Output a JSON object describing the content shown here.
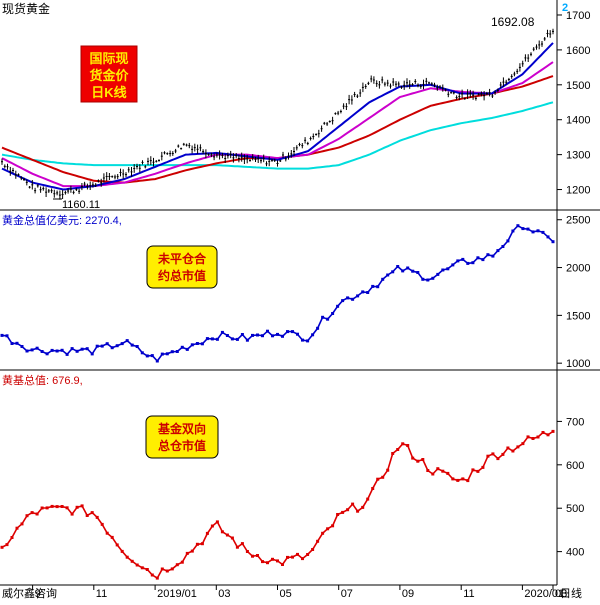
{
  "header": {
    "title": "现货黄金",
    "marker": "2"
  },
  "colors": {
    "price": "#000000",
    "ma_blue": "#0000cc",
    "ma_magenta": "#cc00cc",
    "ma_red": "#cc0000",
    "ma_cyan": "#00dddd",
    "oi": "#0000cc",
    "fund": "#dd0000",
    "badge_red": "#ee0000",
    "badge_yellow": "#ffee00"
  },
  "axis": {
    "x_labels": [
      "9",
      "11",
      "2019/01",
      "03",
      "05",
      "07",
      "09",
      "11",
      "2020/01",
      "03"
    ],
    "x_suffix": "日线",
    "source": "威尔鑫咨询"
  },
  "panels": [
    {
      "badge": "国际现货金价日K线",
      "badge_lines": [
        "国际现",
        "货金价",
        "日K线"
      ],
      "ylim": [
        1150,
        1720
      ],
      "ticks": [
        1200,
        1300,
        1400,
        1500,
        1600,
        1700
      ],
      "annotations": {
        "low": "1160.11",
        "high": "1692.08"
      }
    },
    {
      "label": "黄金总值亿美元: 2270.4,",
      "badge": "未平仓合约总市值",
      "badge_lines": [
        "未平仓合",
        "约总市值"
      ],
      "ylim": [
        960,
        2560
      ],
      "ticks": [
        1000,
        1500,
        2000,
        2500
      ]
    },
    {
      "label": "黄基总值: 676.9,",
      "badge": "基金双向总仓市值",
      "badge_lines": [
        "基金双向",
        "总仓市值"
      ],
      "ylim": [
        330,
        800
      ],
      "ticks": [
        400,
        500,
        600,
        700
      ]
    }
  ],
  "chart_data": [
    {
      "type": "line",
      "title": "国际现货金价日K线",
      "x": [
        "2018/08",
        "2018/09",
        "2018/10",
        "2018/11",
        "2018/12",
        "2019/01",
        "2019/02",
        "2019/03",
        "2019/04",
        "2019/05",
        "2019/06",
        "2019/07",
        "2019/08",
        "2019/09",
        "2019/10",
        "2019/11",
        "2019/12",
        "2020/01",
        "2020/02"
      ],
      "ylim": [
        1150,
        1720
      ],
      "series": [
        {
          "values": [
            1280,
            1205,
            1190,
            1215,
            1250,
            1285,
            1330,
            1300,
            1285,
            1280,
            1340,
            1420,
            1510,
            1500,
            1505,
            1465,
            1475,
            1560,
            1660
          ]
        },
        {
          "values": [
            1260,
            1220,
            1200,
            1210,
            1230,
            1265,
            1300,
            1305,
            1295,
            1285,
            1310,
            1380,
            1450,
            1495,
            1500,
            1475,
            1475,
            1530,
            1620
          ]
        },
        {
          "values": [
            1290,
            1245,
            1210,
            1210,
            1220,
            1245,
            1275,
            1300,
            1300,
            1290,
            1300,
            1345,
            1405,
            1465,
            1490,
            1480,
            1475,
            1505,
            1565
          ]
        },
        {
          "values": [
            1320,
            1285,
            1250,
            1225,
            1220,
            1230,
            1255,
            1275,
            1290,
            1290,
            1300,
            1320,
            1355,
            1400,
            1440,
            1460,
            1475,
            1495,
            1525
          ]
        },
        {
          "values": [
            1300,
            1285,
            1275,
            1270,
            1270,
            1270,
            1270,
            1270,
            1265,
            1260,
            1260,
            1270,
            1300,
            1340,
            1370,
            1390,
            1405,
            1425,
            1450
          ]
        }
      ],
      "annotations": [
        {
          "text": "1160.11",
          "x": "2018/10",
          "y": 1160
        },
        {
          "text": "1692.08",
          "x": "2020/02",
          "y": 1692
        }
      ]
    },
    {
      "type": "line",
      "title": "未平仓合约总市值",
      "x": [
        "2018/08",
        "2018/09",
        "2018/10",
        "2018/11",
        "2018/12",
        "2019/01",
        "2019/02",
        "2019/03",
        "2019/04",
        "2019/05",
        "2019/06",
        "2019/07",
        "2019/08",
        "2019/09",
        "2019/10",
        "2019/11",
        "2019/12",
        "2020/01",
        "2020/02"
      ],
      "ylim": [
        960,
        2560
      ],
      "series": [
        {
          "name": "黄金总值亿美元",
          "values": [
            1290,
            1140,
            1130,
            1130,
            1220,
            1040,
            1170,
            1290,
            1260,
            1330,
            1270,
            1630,
            1780,
            1990,
            1890,
            2050,
            2120,
            2450,
            2270
          ]
        }
      ]
    },
    {
      "type": "line",
      "title": "基金双向总仓市值",
      "x": [
        "2018/08",
        "2018/09",
        "2018/10",
        "2018/11",
        "2018/12",
        "2019/01",
        "2019/02",
        "2019/03",
        "2019/04",
        "2019/05",
        "2019/06",
        "2019/07",
        "2019/08",
        "2019/09",
        "2019/10",
        "2019/11",
        "2019/12",
        "2020/01",
        "2020/02"
      ],
      "ylim": [
        330,
        800
      ],
      "series": [
        {
          "name": "黄基总值",
          "values": [
            410,
            490,
            500,
            490,
            400,
            345,
            390,
            460,
            400,
            375,
            390,
            480,
            520,
            650,
            590,
            560,
            620,
            650,
            677
          ]
        }
      ]
    }
  ]
}
